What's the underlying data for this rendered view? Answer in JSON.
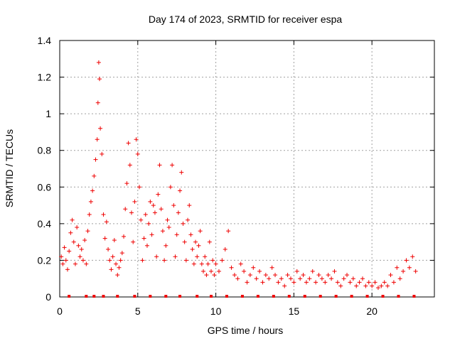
{
  "chart_data": {
    "type": "scatter",
    "title": "Day 174 of 2023, SRMTID for receiver espa",
    "xlabel": "GPS time / hours",
    "ylabel": "SRMTID / TECUs",
    "xlim": [
      0,
      24
    ],
    "ylim": [
      0,
      1.4
    ],
    "grid": true,
    "marker": "plus",
    "color": "#ee0000",
    "x_ticks": [
      0,
      5,
      10,
      15,
      20
    ],
    "x_tick_labels": [
      "0",
      "5",
      "10",
      "15",
      "20"
    ],
    "y_ticks": [
      0,
      0.2,
      0.4,
      0.6,
      0.8,
      1.0,
      1.2,
      1.4
    ],
    "y_tick_labels": [
      "0",
      "0.2",
      "0.4",
      "0.6",
      "0.8",
      "1",
      "1.2",
      "1.4"
    ],
    "series": [
      {
        "name": "SRMTID",
        "x": [
          0.1,
          0.2,
          0.3,
          0.4,
          0.5,
          0.6,
          0.7,
          0.8,
          0.9,
          1.0,
          1.1,
          1.2,
          1.3,
          1.4,
          1.5,
          1.6,
          1.7,
          1.8,
          1.9,
          2.0,
          2.1,
          2.2,
          2.3,
          2.4,
          2.45,
          2.5,
          2.55,
          2.6,
          2.7,
          2.8,
          2.9,
          3.0,
          3.1,
          3.2,
          3.3,
          3.4,
          3.5,
          3.6,
          3.7,
          3.8,
          3.9,
          4.0,
          4.1,
          4.2,
          4.3,
          4.4,
          4.5,
          4.6,
          4.7,
          4.8,
          4.9,
          5.0,
          5.1,
          5.2,
          5.3,
          5.4,
          5.5,
          5.6,
          5.7,
          5.8,
          5.9,
          6.0,
          6.1,
          6.2,
          6.3,
          6.4,
          6.5,
          6.6,
          6.7,
          6.8,
          6.9,
          7.0,
          7.1,
          7.2,
          7.3,
          7.4,
          7.5,
          7.6,
          7.7,
          7.8,
          7.9,
          8.0,
          8.1,
          8.2,
          8.3,
          8.4,
          8.5,
          8.6,
          8.7,
          8.8,
          8.9,
          9.0,
          9.1,
          9.2,
          9.3,
          9.4,
          9.5,
          9.6,
          9.7,
          9.8,
          9.9,
          10.0,
          10.2,
          10.4,
          10.6,
          10.8,
          11.0,
          11.2,
          11.4,
          11.6,
          11.8,
          12.0,
          12.2,
          12.4,
          12.6,
          12.8,
          13.0,
          13.2,
          13.4,
          13.6,
          13.8,
          14.0,
          14.2,
          14.4,
          14.6,
          14.8,
          15.0,
          15.2,
          15.4,
          15.6,
          15.8,
          16.0,
          16.2,
          16.4,
          16.6,
          16.8,
          17.0,
          17.2,
          17.4,
          17.6,
          17.8,
          18.0,
          18.2,
          18.4,
          18.6,
          18.8,
          19.0,
          19.2,
          19.4,
          19.6,
          19.8,
          20.0,
          20.2,
          20.4,
          20.6,
          20.8,
          21.0,
          21.2,
          21.4,
          21.6,
          21.8,
          22.0,
          22.2,
          22.4,
          22.6,
          22.8
        ],
        "y": [
          0.22,
          0.18,
          0.27,
          0.2,
          0.15,
          0.25,
          0.35,
          0.42,
          0.3,
          0.18,
          0.38,
          0.28,
          0.22,
          0.26,
          0.2,
          0.31,
          0.18,
          0.36,
          0.45,
          0.52,
          0.58,
          0.66,
          0.75,
          0.86,
          1.06,
          1.28,
          1.19,
          0.92,
          0.78,
          0.45,
          0.32,
          0.41,
          0.26,
          0.2,
          0.15,
          0.22,
          0.31,
          0.18,
          0.12,
          0.16,
          0.2,
          0.24,
          0.33,
          0.48,
          0.62,
          0.84,
          0.72,
          0.46,
          0.3,
          0.52,
          0.86,
          0.78,
          0.6,
          0.42,
          0.2,
          0.32,
          0.45,
          0.28,
          0.4,
          0.52,
          0.34,
          0.5,
          0.46,
          0.22,
          0.56,
          0.72,
          0.48,
          0.36,
          0.2,
          0.28,
          0.42,
          0.38,
          0.6,
          0.72,
          0.5,
          0.22,
          0.34,
          0.46,
          0.58,
          0.68,
          0.4,
          0.3,
          0.2,
          0.42,
          0.5,
          0.34,
          0.26,
          0.18,
          0.3,
          0.22,
          0.28,
          0.36,
          0.18,
          0.14,
          0.22,
          0.12,
          0.18,
          0.3,
          0.14,
          0.2,
          0.12,
          0.18,
          0.14,
          0.2,
          0.26,
          0.36,
          0.16,
          0.12,
          0.1,
          0.18,
          0.14,
          0.08,
          0.12,
          0.16,
          0.1,
          0.14,
          0.08,
          0.12,
          0.1,
          0.16,
          0.12,
          0.08,
          0.1,
          0.06,
          0.12,
          0.1,
          0.08,
          0.14,
          0.1,
          0.12,
          0.08,
          0.1,
          0.14,
          0.08,
          0.12,
          0.1,
          0.08,
          0.12,
          0.1,
          0.14,
          0.08,
          0.06,
          0.1,
          0.12,
          0.08,
          0.1,
          0.06,
          0.08,
          0.1,
          0.06,
          0.08,
          0.06,
          0.08,
          0.05,
          0.06,
          0.08,
          0.06,
          0.12,
          0.08,
          0.16,
          0.1,
          0.14,
          0.2,
          0.16,
          0.22,
          0.14
        ]
      }
    ],
    "gap_markers_x": [
      0.6,
      1.7,
      2.2,
      2.8,
      3.7,
      4.8,
      5.8,
      6.8,
      7.7,
      8.8,
      9.7,
      10.7,
      11.7,
      12.7,
      13.7,
      14.7,
      15.7,
      16.7,
      17.7,
      18.7,
      19.7,
      20.7,
      21.7,
      22.7
    ]
  }
}
